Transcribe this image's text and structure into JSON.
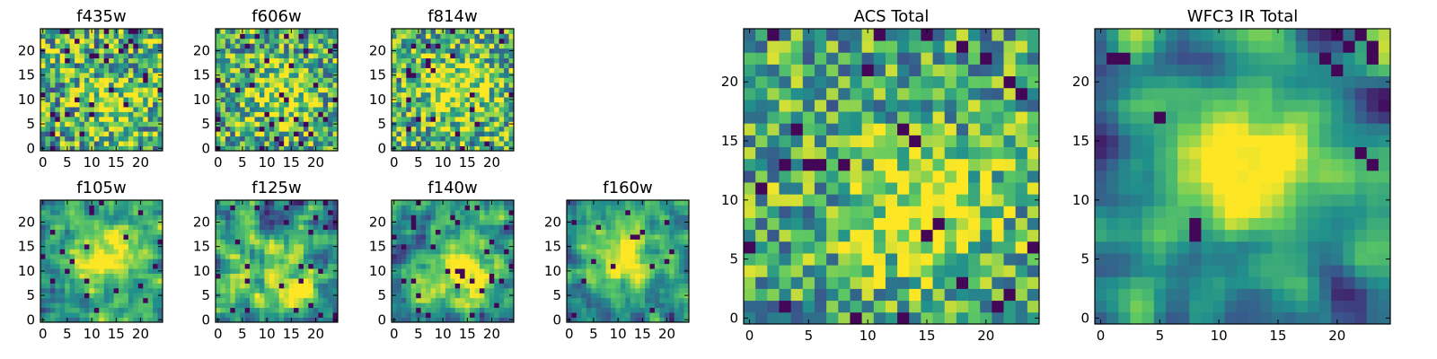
{
  "figure": {
    "colormap": "viridis",
    "colormap_stops": [
      "#440154",
      "#3b528b",
      "#21918c",
      "#5ec962",
      "#fde725"
    ]
  },
  "chart_data": [
    {
      "type": "heatmap",
      "title": "f435w",
      "grid_size": [
        25,
        25
      ],
      "xlim": [
        -0.5,
        24.5
      ],
      "ylim": [
        -0.5,
        24.5
      ],
      "xticks": [
        0,
        5,
        10,
        15,
        20
      ],
      "yticks": [
        0,
        5,
        10,
        15,
        20
      ],
      "grid": false,
      "seed": 11,
      "noise": 0.85,
      "smooth": 0,
      "peak": [
        14,
        9
      ],
      "peak_strength": 0.25,
      "peak_sigma": 5,
      "base": 0.62,
      "dark_rate": 0.05,
      "extra_dark": [],
      "extra_bright": []
    },
    {
      "type": "heatmap",
      "title": "f606w",
      "grid_size": [
        25,
        25
      ],
      "xlim": [
        -0.5,
        24.5
      ],
      "ylim": [
        -0.5,
        24.5
      ],
      "xticks": [
        0,
        5,
        10,
        15,
        20
      ],
      "yticks": [
        0,
        5,
        10,
        15,
        20
      ],
      "grid": false,
      "seed": 23,
      "noise": 0.8,
      "smooth": 0,
      "peak": [
        13,
        11
      ],
      "peak_strength": 0.35,
      "peak_sigma": 5,
      "base": 0.6,
      "dark_rate": 0.05,
      "extra_dark": [],
      "extra_bright": []
    },
    {
      "type": "heatmap",
      "title": "f814w",
      "grid_size": [
        25,
        25
      ],
      "xlim": [
        -0.5,
        24.5
      ],
      "ylim": [
        -0.5,
        24.5
      ],
      "xticks": [
        0,
        5,
        10,
        15,
        20
      ],
      "yticks": [
        0,
        5,
        10,
        15,
        20
      ],
      "grid": false,
      "seed": 37,
      "noise": 0.8,
      "smooth": 0,
      "peak": [
        13,
        12
      ],
      "peak_strength": 0.35,
      "peak_sigma": 5,
      "base": 0.63,
      "dark_rate": 0.04,
      "extra_dark": [],
      "extra_bright": []
    },
    {
      "type": "heatmap",
      "title": "f105w",
      "grid_size": [
        25,
        25
      ],
      "xlim": [
        -0.5,
        24.5
      ],
      "ylim": [
        -0.5,
        24.5
      ],
      "xticks": [
        0,
        5,
        10,
        15,
        20
      ],
      "yticks": [
        0,
        5,
        10,
        15,
        20
      ],
      "grid": false,
      "seed": 41,
      "noise": 0.6,
      "smooth": 1,
      "peak": [
        13,
        13
      ],
      "peak_strength": 0.55,
      "peak_sigma": 5,
      "base": 0.52,
      "dark_rate": 0.03,
      "extra_dark": [],
      "extra_bright": []
    },
    {
      "type": "heatmap",
      "title": "f125w",
      "grid_size": [
        25,
        25
      ],
      "xlim": [
        -0.5,
        24.5
      ],
      "ylim": [
        -0.5,
        24.5
      ],
      "xticks": [
        0,
        5,
        10,
        15,
        20
      ],
      "yticks": [
        0,
        5,
        10,
        15,
        20
      ],
      "grid": false,
      "seed": 53,
      "noise": 0.75,
      "smooth": 1,
      "peak": [
        15,
        7
      ],
      "peak_strength": 0.4,
      "peak_sigma": 5,
      "base": 0.55,
      "dark_rate": 0.05,
      "extra_dark": [],
      "extra_bright": []
    },
    {
      "type": "heatmap",
      "title": "f140w",
      "grid_size": [
        25,
        25
      ],
      "xlim": [
        -0.5,
        24.5
      ],
      "ylim": [
        -0.5,
        24.5
      ],
      "xticks": [
        0,
        5,
        10,
        15,
        20
      ],
      "yticks": [
        0,
        5,
        10,
        15,
        20
      ],
      "grid": false,
      "seed": 67,
      "noise": 0.65,
      "smooth": 1,
      "peak": [
        14,
        10
      ],
      "peak_strength": 0.5,
      "peak_sigma": 5,
      "base": 0.52,
      "dark_rate": 0.04,
      "extra_dark": [],
      "extra_bright": []
    },
    {
      "type": "heatmap",
      "title": "f160w",
      "grid_size": [
        25,
        25
      ],
      "xlim": [
        -0.5,
        24.5
      ],
      "ylim": [
        -0.5,
        24.5
      ],
      "xticks": [
        0,
        5,
        10,
        15,
        20
      ],
      "yticks": [
        0,
        5,
        10,
        15,
        20
      ],
      "grid": false,
      "seed": 79,
      "noise": 0.55,
      "smooth": 1,
      "peak": [
        11,
        13
      ],
      "peak_strength": 0.6,
      "peak_sigma": 5,
      "base": 0.48,
      "dark_rate": 0.03,
      "extra_dark": [],
      "extra_bright": []
    },
    {
      "type": "heatmap",
      "title": "ACS Total",
      "grid_size": [
        25,
        25
      ],
      "xlim": [
        -0.5,
        24.5
      ],
      "ylim": [
        -0.5,
        24.5
      ],
      "xticks": [
        0,
        5,
        10,
        15,
        20
      ],
      "yticks": [
        0,
        5,
        10,
        15,
        20
      ],
      "grid": false,
      "seed": 97,
      "noise": 0.7,
      "smooth": 0,
      "peak": [
        15,
        9
      ],
      "peak_strength": 0.4,
      "peak_sigma": 4,
      "base": 0.6,
      "dark_rate": 0.03,
      "extra_dark": [
        [
          1,
          11
        ],
        [
          2,
          11
        ],
        [
          3,
          13
        ],
        [
          5,
          13
        ],
        [
          6,
          13
        ],
        [
          8,
          13
        ],
        [
          4,
          16
        ],
        [
          21,
          1
        ],
        [
          22,
          2
        ],
        [
          24,
          6
        ],
        [
          18,
          3
        ],
        [
          3,
          1
        ],
        [
          18,
          23
        ],
        [
          15,
          24
        ]
      ],
      "extra_bright": [
        [
          2,
          11
        ],
        [
          10,
          15
        ],
        [
          14,
          9
        ],
        [
          16,
          10
        ]
      ]
    },
    {
      "type": "heatmap",
      "title": "WFC3 IR Total",
      "grid_size": [
        25,
        25
      ],
      "xlim": [
        -0.5,
        24.5
      ],
      "ylim": [
        -0.5,
        24.5
      ],
      "xticks": [
        0,
        5,
        10,
        15,
        20
      ],
      "yticks": [
        0,
        5,
        10,
        15,
        20
      ],
      "grid": false,
      "seed": 113,
      "noise": 0.45,
      "smooth": 2,
      "peak": [
        12,
        13
      ],
      "peak_strength": 0.65,
      "peak_sigma": 4.5,
      "base": 0.45,
      "dark_rate": 0.0,
      "extra_dark": [
        [
          20,
          24
        ],
        [
          21,
          23
        ],
        [
          22,
          24
        ],
        [
          23,
          23
        ],
        [
          23,
          22
        ],
        [
          19,
          22
        ],
        [
          20,
          21
        ],
        [
          8,
          8
        ],
        [
          8,
          7
        ],
        [
          22,
          14
        ],
        [
          23,
          13
        ],
        [
          5,
          17
        ],
        [
          1,
          22
        ],
        [
          2,
          22
        ]
      ],
      "extra_bright": [
        [
          12,
          14
        ],
        [
          13,
          14
        ],
        [
          13,
          13
        ],
        [
          12,
          12
        ]
      ]
    }
  ]
}
